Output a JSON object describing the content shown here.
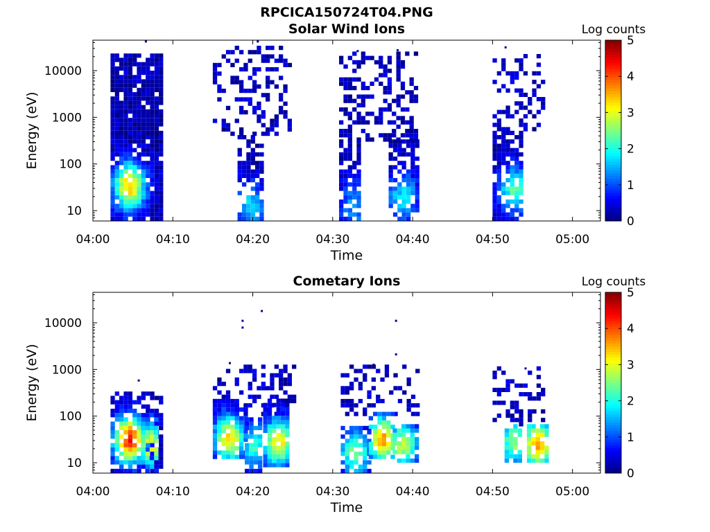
{
  "figure": {
    "title": "RPCICA150724T04.PNG"
  },
  "chart_data": [
    {
      "type": "heatmap",
      "title": "Solar Wind Ions",
      "xlabel": "Time",
      "ylabel": "Energy (eV)",
      "x_ticks": [
        "04:00",
        "04:10",
        "04:20",
        "04:30",
        "04:40",
        "04:50",
        "05:00"
      ],
      "x_range_min": [
        0,
        63.5
      ],
      "y_ticks": [
        10,
        100,
        1000,
        10000
      ],
      "y_range_ev": [
        6,
        45000
      ],
      "y_scale": "log",
      "colorbar": {
        "label": "Log counts",
        "ticks": [
          0,
          1,
          2,
          3,
          4,
          5
        ],
        "range": [
          0,
          5
        ],
        "colormap": "jet"
      },
      "bursts": [
        {
          "t_start_min": 2.2,
          "t_end_min": 8.7,
          "e_low_ev": 6,
          "e_high_ev": 20000,
          "peak_time_min": 4.3,
          "peak_energy_ev": 30,
          "peak_log_counts": 3.2,
          "density": 0.9
        },
        {
          "t_start_min": 15.0,
          "t_end_min": 24.8,
          "e_low_ev": 400,
          "e_high_ev": 30000,
          "peak_time_min": 20.0,
          "peak_energy_ev": 3000,
          "peak_log_counts": 0.2,
          "density": 0.3
        },
        {
          "t_start_min": 18.1,
          "t_end_min": 21.2,
          "e_low_ev": 6,
          "e_high_ev": 400,
          "peak_time_min": 19.5,
          "peak_energy_ev": 12,
          "peak_log_counts": 1.4,
          "density": 0.7
        },
        {
          "t_start_min": 30.8,
          "t_end_min": 40.5,
          "e_low_ev": 300,
          "e_high_ev": 25000,
          "peak_time_min": 35.0,
          "peak_energy_ev": 3000,
          "peak_log_counts": 0.2,
          "density": 0.4
        },
        {
          "t_start_min": 30.8,
          "t_end_min": 33.2,
          "e_low_ev": 6,
          "e_high_ev": 300,
          "peak_time_min": 32.5,
          "peak_energy_ev": 12,
          "peak_log_counts": 1.2,
          "density": 0.75
        },
        {
          "t_start_min": 37.0,
          "t_end_min": 40.5,
          "e_low_ev": 6,
          "e_high_ev": 300,
          "peak_time_min": 38.5,
          "peak_energy_ev": 18,
          "peak_log_counts": 1.5,
          "density": 0.75
        },
        {
          "t_start_min": 50.0,
          "t_end_min": 56.5,
          "e_low_ev": 500,
          "e_high_ev": 20000,
          "peak_time_min": 52.0,
          "peak_energy_ev": 3000,
          "peak_log_counts": 0.2,
          "density": 0.35
        },
        {
          "t_start_min": 50.0,
          "t_end_min": 53.5,
          "e_low_ev": 6,
          "e_high_ev": 500,
          "peak_time_min": 52.5,
          "peak_energy_ev": 25,
          "peak_log_counts": 2.0,
          "density": 0.7
        }
      ],
      "points": [
        {
          "t_min": 6.5,
          "energy_ev": 40000,
          "log_counts": 0.1
        },
        {
          "t_min": 20.5,
          "energy_ev": 40000,
          "log_counts": 0.1
        },
        {
          "t_min": 33.0,
          "energy_ev": 25000,
          "log_counts": 0.1
        },
        {
          "t_min": 38.0,
          "energy_ev": 26000,
          "log_counts": 0.1
        },
        {
          "t_min": 51.5,
          "energy_ev": 30000,
          "log_counts": 0.1
        }
      ]
    },
    {
      "type": "heatmap",
      "title": "Cometary Ions",
      "xlabel": "Time",
      "ylabel": "Energy (eV)",
      "x_ticks": [
        "04:00",
        "04:10",
        "04:20",
        "04:30",
        "04:40",
        "04:50",
        "05:00"
      ],
      "x_range_min": [
        0,
        63.5
      ],
      "y_ticks": [
        10,
        100,
        1000,
        10000
      ],
      "y_range_ev": [
        6,
        45000
      ],
      "y_scale": "log",
      "colorbar": {
        "label": "Log counts",
        "ticks": [
          0,
          1,
          2,
          3,
          4,
          5
        ],
        "range": [
          0,
          5
        ],
        "colormap": "jet"
      },
      "bursts": [
        {
          "t_start_min": 2.2,
          "t_end_min": 8.7,
          "e_low_ev": 6,
          "e_high_ev": 300,
          "peak_time_min": 4.3,
          "peak_energy_ev": 28,
          "peak_log_counts": 4.0,
          "density": 0.75
        },
        {
          "t_start_min": 6.0,
          "t_end_min": 8.0,
          "e_low_ev": 6,
          "e_high_ev": 100,
          "peak_time_min": 7.0,
          "peak_energy_ev": 22,
          "peak_log_counts": 2.8,
          "density": 0.7
        },
        {
          "t_start_min": 15.0,
          "t_end_min": 25.0,
          "e_low_ev": 100,
          "e_high_ev": 1200,
          "peak_time_min": 20.0,
          "peak_energy_ev": 300,
          "peak_log_counts": 0.2,
          "density": 0.3
        },
        {
          "t_start_min": 15.0,
          "t_end_min": 19.0,
          "e_low_ev": 12,
          "e_high_ev": 200,
          "peak_time_min": 16.8,
          "peak_energy_ev": 30,
          "peak_log_counts": 3.0,
          "density": 0.85
        },
        {
          "t_start_min": 19.0,
          "t_end_min": 21.0,
          "e_low_ev": 6,
          "e_high_ev": 80,
          "peak_time_min": 20.0,
          "peak_energy_ev": 20,
          "peak_log_counts": 1.8,
          "density": 0.7
        },
        {
          "t_start_min": 21.3,
          "t_end_min": 24.6,
          "e_low_ev": 8,
          "e_high_ev": 200,
          "peak_time_min": 23.0,
          "peak_energy_ev": 25,
          "peak_log_counts": 3.0,
          "density": 0.85
        },
        {
          "t_start_min": 31.0,
          "t_end_min": 40.5,
          "e_low_ev": 100,
          "e_high_ev": 1200,
          "peak_time_min": 36.0,
          "peak_energy_ev": 300,
          "peak_log_counts": 0.2,
          "density": 0.3
        },
        {
          "t_start_min": 31.0,
          "t_end_min": 34.5,
          "e_low_ev": 6,
          "e_high_ev": 60,
          "peak_time_min": 32.5,
          "peak_energy_ev": 15,
          "peak_log_counts": 2.2,
          "density": 0.75
        },
        {
          "t_start_min": 34.5,
          "t_end_min": 37.5,
          "e_low_ev": 12,
          "e_high_ev": 120,
          "peak_time_min": 36.0,
          "peak_energy_ev": 28,
          "peak_log_counts": 3.4,
          "density": 0.85
        },
        {
          "t_start_min": 37.5,
          "t_end_min": 40.5,
          "e_low_ev": 10,
          "e_high_ev": 60,
          "peak_time_min": 38.5,
          "peak_energy_ev": 22,
          "peak_log_counts": 2.6,
          "density": 0.8
        },
        {
          "t_start_min": 50.0,
          "t_end_min": 56.5,
          "e_low_ev": 60,
          "e_high_ev": 1000,
          "peak_time_min": 53.0,
          "peak_energy_ev": 250,
          "peak_log_counts": 0.2,
          "density": 0.3
        },
        {
          "t_start_min": 51.5,
          "t_end_min": 53.5,
          "e_low_ev": 10,
          "e_high_ev": 60,
          "peak_time_min": 52.5,
          "peak_energy_ev": 25,
          "peak_log_counts": 2.4,
          "density": 0.8
        },
        {
          "t_start_min": 54.3,
          "t_end_min": 56.5,
          "e_low_ev": 10,
          "e_high_ev": 60,
          "peak_time_min": 55.4,
          "peak_energy_ev": 22,
          "peak_log_counts": 3.5,
          "density": 0.85
        }
      ],
      "points": [
        {
          "t_min": 18.6,
          "energy_ev": 10500,
          "log_counts": 0.1
        },
        {
          "t_min": 18.6,
          "energy_ev": 7500,
          "log_counts": 0.1
        },
        {
          "t_min": 21.0,
          "energy_ev": 17000,
          "log_counts": 0.1
        },
        {
          "t_min": 37.8,
          "energy_ev": 10500,
          "log_counts": 0.1
        },
        {
          "t_min": 37.8,
          "energy_ev": 2000,
          "log_counts": 0.1
        },
        {
          "t_min": 5.6,
          "energy_ev": 550,
          "log_counts": 0.1
        },
        {
          "t_min": 17.0,
          "energy_ev": 1300,
          "log_counts": 0.1
        },
        {
          "t_min": 35.0,
          "energy_ev": 1200,
          "log_counts": 0.1
        },
        {
          "t_min": 54.0,
          "energy_ev": 1000,
          "log_counts": 0.1
        }
      ]
    }
  ]
}
